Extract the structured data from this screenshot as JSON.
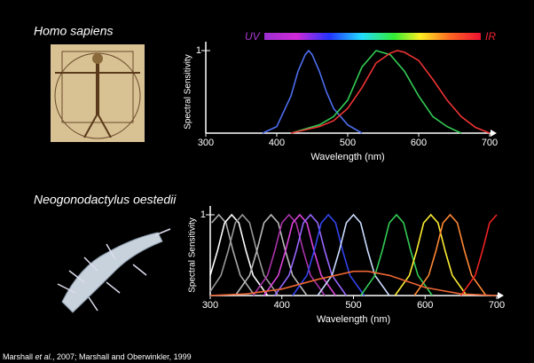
{
  "chart_data": [
    {
      "type": "line",
      "title": "Homo sapiens",
      "xlabel": "Wavelength (nm)",
      "ylabel": "Spectral Sensitivity",
      "spectrum_labels": [
        "UV",
        "IR"
      ],
      "xlim": [
        300,
        700
      ],
      "ylim": [
        0,
        1
      ],
      "xticks": [
        300,
        400,
        500,
        600,
        700
      ],
      "yticks": [
        1
      ],
      "series": [
        {
          "color": "#4d6ef0",
          "x": [
            380,
            400,
            420,
            430,
            440,
            445,
            450,
            460,
            470,
            480,
            500,
            520
          ],
          "values": [
            0,
            0.08,
            0.45,
            0.75,
            0.95,
            1,
            0.95,
            0.75,
            0.5,
            0.3,
            0.1,
            0
          ]
        },
        {
          "color": "#33cc55",
          "x": [
            420,
            460,
            480,
            500,
            520,
            540,
            560,
            580,
            600,
            620,
            640,
            660
          ],
          "values": [
            0,
            0.1,
            0.2,
            0.4,
            0.8,
            1,
            0.95,
            0.75,
            0.45,
            0.2,
            0.08,
            0
          ]
        },
        {
          "color": "#ee3333",
          "x": [
            420,
            460,
            480,
            500,
            520,
            540,
            560,
            570,
            580,
            600,
            620,
            640,
            660,
            680,
            700
          ],
          "values": [
            0,
            0.08,
            0.15,
            0.3,
            0.55,
            0.85,
            0.97,
            1,
            0.98,
            0.88,
            0.65,
            0.4,
            0.2,
            0.07,
            0
          ]
        }
      ]
    },
    {
      "type": "line",
      "title": "Neogonodactylus oestedii",
      "xlabel": "Wavelength (nm)",
      "ylabel": "Spectral Sensitivity",
      "xlim": [
        300,
        700
      ],
      "ylim": [
        0,
        1
      ],
      "xticks": [
        300,
        400,
        500,
        600,
        700
      ],
      "yticks": [
        1
      ],
      "series": [
        {
          "color": "#aaaaaa",
          "x": [
            302,
            312,
            322,
            332,
            342,
            362
          ],
          "values": [
            0.9,
            1,
            0.9,
            0.55,
            0.25,
            0
          ]
        },
        {
          "color": "#ffffff",
          "x": [
            300,
            310,
            320,
            330,
            340,
            350,
            360,
            380
          ],
          "values": [
            0.25,
            0.55,
            0.9,
            1,
            0.9,
            0.55,
            0.25,
            0
          ]
        },
        {
          "color": "#999999",
          "x": [
            300,
            315,
            325,
            335,
            345,
            355,
            365,
            375,
            395
          ],
          "values": [
            0.05,
            0.25,
            0.55,
            0.9,
            1,
            0.9,
            0.55,
            0.25,
            0
          ]
        },
        {
          "color": "#bbbbbb",
          "x": [
            335,
            355,
            365,
            375,
            385,
            395,
            405,
            415,
            435
          ],
          "values": [
            0,
            0.25,
            0.55,
            0.9,
            1,
            0.9,
            0.55,
            0.25,
            0
          ]
        },
        {
          "color": "#aa33aa",
          "x": [
            360,
            380,
            390,
            400,
            410,
            420,
            430,
            440,
            460
          ],
          "values": [
            0,
            0.25,
            0.55,
            0.9,
            1,
            0.9,
            0.55,
            0.25,
            0
          ]
        },
        {
          "color": "#dd44dd",
          "x": [
            375,
            395,
            405,
            415,
            425,
            435,
            445,
            455,
            475
          ],
          "values": [
            0,
            0.25,
            0.55,
            0.9,
            1,
            0.9,
            0.55,
            0.25,
            0
          ]
        },
        {
          "color": "#9966ff",
          "x": [
            390,
            410,
            420,
            430,
            440,
            450,
            460,
            470,
            490
          ],
          "values": [
            0,
            0.25,
            0.55,
            0.9,
            1,
            0.9,
            0.55,
            0.25,
            0
          ]
        },
        {
          "color": "#3344ee",
          "x": [
            415,
            435,
            445,
            455,
            465,
            475,
            485,
            495,
            515
          ],
          "values": [
            0,
            0.25,
            0.55,
            0.9,
            1,
            0.9,
            0.55,
            0.25,
            0
          ]
        },
        {
          "color": "#ccddff",
          "x": [
            450,
            470,
            480,
            490,
            500,
            510,
            520,
            530,
            550
          ],
          "values": [
            0,
            0.25,
            0.55,
            0.9,
            1,
            0.9,
            0.55,
            0.25,
            0
          ]
        },
        {
          "color": "#33cc55",
          "x": [
            510,
            530,
            540,
            550,
            560,
            570,
            580,
            590,
            610
          ],
          "values": [
            0,
            0.25,
            0.55,
            0.9,
            1,
            0.9,
            0.55,
            0.25,
            0
          ]
        },
        {
          "color": "#ffee33",
          "x": [
            558,
            578,
            588,
            598,
            608,
            618,
            628,
            638,
            658
          ],
          "values": [
            0,
            0.25,
            0.55,
            0.9,
            1,
            0.9,
            0.55,
            0.25,
            0
          ]
        },
        {
          "color": "#ff8833",
          "x": [
            585,
            605,
            615,
            625,
            635,
            645,
            655,
            665,
            685
          ],
          "values": [
            0,
            0.25,
            0.55,
            0.9,
            1,
            0.9,
            0.55,
            0.25,
            0
          ]
        },
        {
          "color": "#ee2222",
          "x": [
            650,
            670,
            680,
            690,
            700
          ],
          "values": [
            0,
            0.25,
            0.55,
            0.9,
            1
          ]
        },
        {
          "color": "#ee6633",
          "x": [
            300,
            350,
            400,
            450,
            500,
            520,
            550,
            600,
            650,
            700
          ],
          "values": [
            0,
            0.02,
            0.08,
            0.2,
            0.3,
            0.3,
            0.25,
            0.1,
            0.02,
            0
          ]
        }
      ]
    }
  ],
  "footnote": [
    "Marshall ",
    "et al.",
    ", 2007; Marshall and Oberwinkler, 1999"
  ]
}
